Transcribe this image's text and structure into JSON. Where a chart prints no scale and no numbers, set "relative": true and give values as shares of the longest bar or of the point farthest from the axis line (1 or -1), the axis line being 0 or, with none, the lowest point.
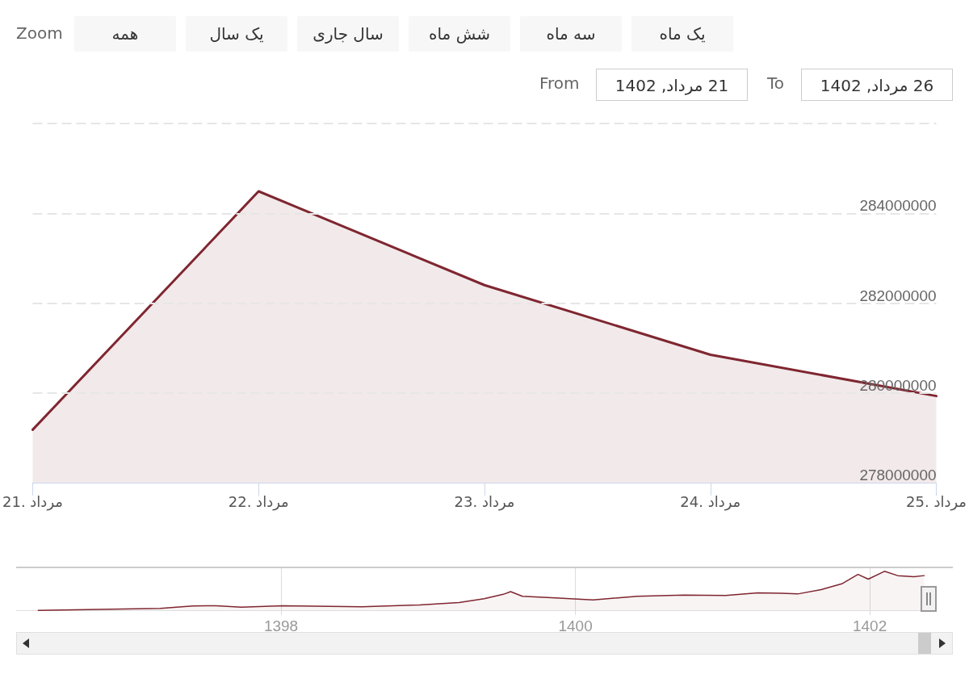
{
  "chart_data": [
    {
      "type": "other",
      "annotations": [
        "Zoom",
        "همه",
        "یک سال",
        "سال جاری",
        "شش ماه",
        "سه ماه",
        "یک ماه",
        "From",
        "21 مرداد, 1402",
        "To",
        "26 مرداد, 1402"
      ]
    },
    {
      "type": "area",
      "categories": [
        "21. مرداد",
        "22. مرداد",
        "23. مرداد",
        "24. مرداد",
        "25. مرداد"
      ],
      "series": [
        {
          "color": "#7f2630",
          "values": [
            279180000,
            284490000,
            282400000,
            280850000,
            279930000
          ]
        }
      ],
      "ylim": [
        278000000,
        286000000
      ],
      "yticks": [
        278000000,
        280000000,
        282000000,
        284000000,
        {
          "value": 286000000,
          "label": null
        }
      ],
      "grid": "y"
    },
    {
      "type": "area",
      "relative": true,
      "x": [
        1396.35,
        1397.18,
        1397.4,
        1397.56,
        1397.73,
        1398.01,
        1398.55,
        1398.94,
        1399.21,
        1399.38,
        1399.51,
        1399.56,
        1399.64,
        1399.81,
        1400.12,
        1400.42,
        1400.74,
        1401.02,
        1401.24,
        1401.4,
        1401.51,
        1401.67,
        1401.81,
        1401.92,
        1401.99,
        1402.1,
        1402.19,
        1402.3,
        1402.37
      ],
      "series": [
        {
          "color": "#7f2630",
          "values": [
            0,
            0.05,
            0.11,
            0.12,
            0.08,
            0.12,
            0.09,
            0.14,
            0.2,
            0.3,
            0.41,
            0.48,
            0.36,
            0.33,
            0.27,
            0.36,
            0.39,
            0.38,
            0.45,
            0.44,
            0.42,
            0.53,
            0.68,
            0.92,
            0.8,
            1,
            0.89,
            0.86,
            0.89
          ]
        }
      ],
      "xlim": [
        1396.2,
        1402.4
      ],
      "xticks": [
        1398,
        1400,
        1402
      ],
      "grid": "x"
    }
  ]
}
